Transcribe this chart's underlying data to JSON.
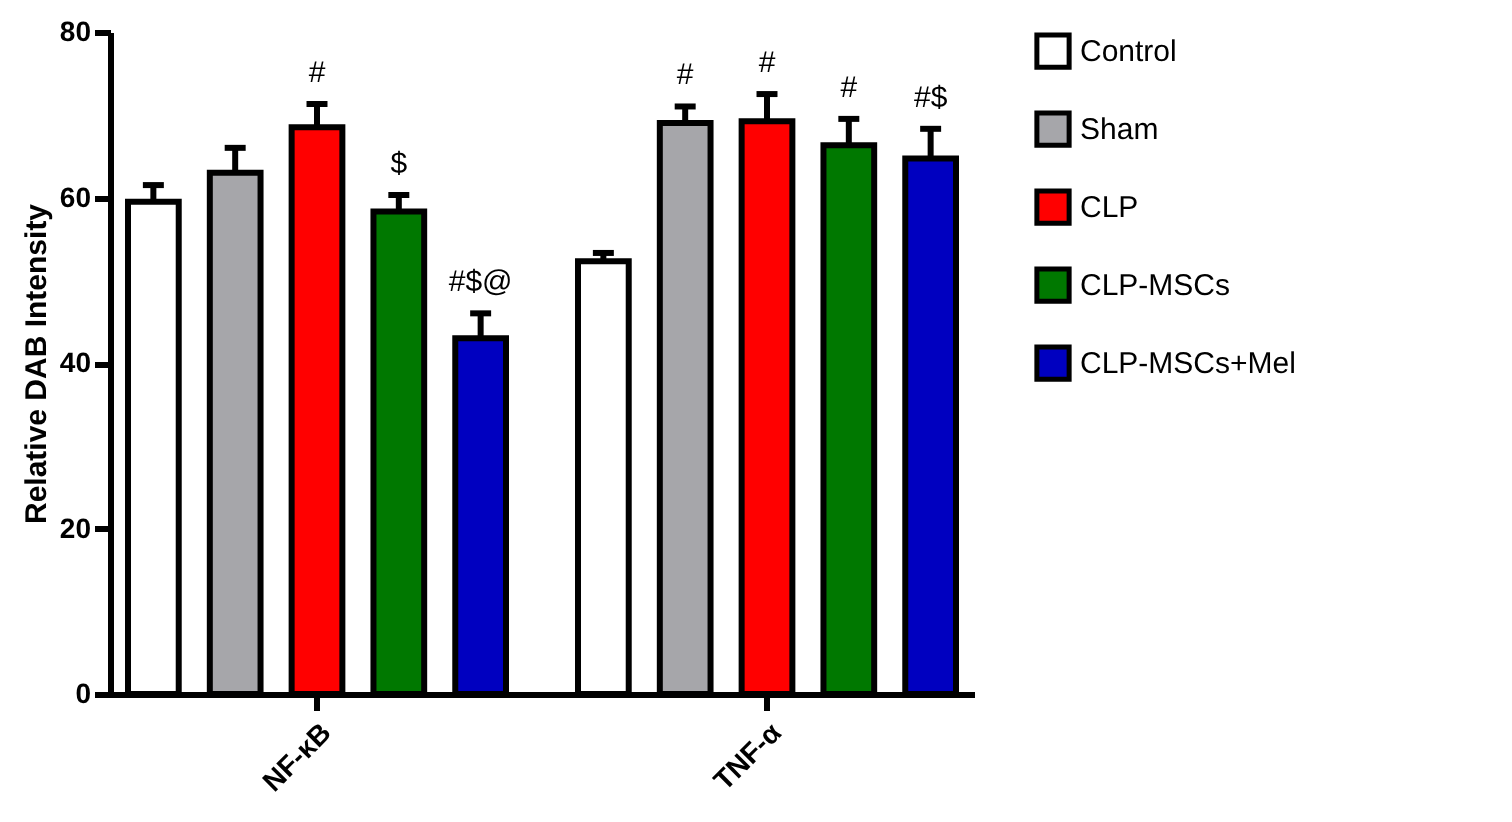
{
  "chart_data": {
    "type": "bar",
    "ylabel": "Relative DAB Intensity",
    "categories": [
      "NF-κB",
      "TNF-α"
    ],
    "series": [
      {
        "name": "Control",
        "color": "#ffffff",
        "values": [
          59.5,
          52.3
        ],
        "errors": [
          [
            59.5,
            61.5
          ],
          [
            52.3,
            53.3
          ]
        ]
      },
      {
        "name": "Sham",
        "color": "#a6a6aa",
        "values": [
          63,
          69
        ],
        "errors": [
          [
            63,
            66
          ],
          [
            69,
            71
          ]
        ],
        "value_labels": [
          null,
          "#"
        ]
      },
      {
        "name": "CLP",
        "color": "#ff0000",
        "values": [
          68.5,
          69.2
        ],
        "errors": [
          [
            68.5,
            71.3
          ],
          [
            69.2,
            72.5
          ]
        ],
        "value_labels": [
          "#",
          "#"
        ]
      },
      {
        "name": "CLP-MSCs",
        "color": "#007800",
        "values": [
          58.3,
          66.3
        ],
        "errors": [
          [
            58.3,
            60.3
          ],
          [
            66.3,
            69.5
          ]
        ],
        "value_labels": [
          "$",
          "#"
        ]
      },
      {
        "name": "CLP-MSCs+Mel",
        "color": "#0000c0",
        "values": [
          43,
          64.7
        ],
        "errors": [
          [
            43,
            46
          ],
          [
            64.7,
            68.3
          ]
        ],
        "value_labels": [
          "#$@",
          "#$"
        ]
      }
    ],
    "ylim": [
      0,
      80
    ],
    "yticks": [
      0,
      20,
      40,
      60,
      80
    ],
    "grid": false,
    "legend": "right"
  }
}
